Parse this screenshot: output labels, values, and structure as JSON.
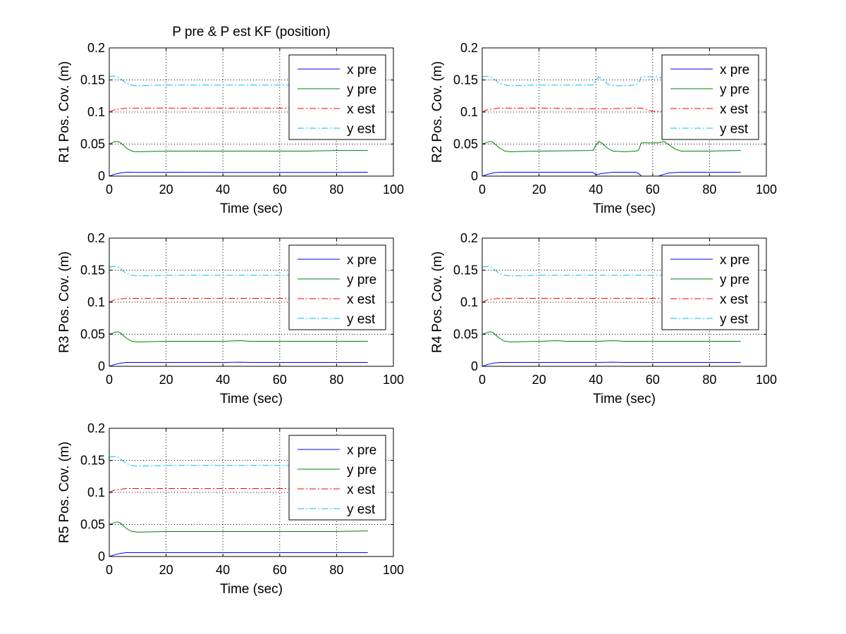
{
  "figure": {
    "background": "#ffffff",
    "colors": {
      "x_pre": "#0000ff",
      "y_pre": "#008000",
      "x_est": "#ff0000",
      "y_est": "#00bfff"
    }
  },
  "chart_data": [
    {
      "type": "line",
      "title": "P pre & P est KF (position)",
      "xlabel": "Time (sec)",
      "ylabel": "R1 Pos. Cov. (m)",
      "xlim": [
        0,
        100
      ],
      "ylim": [
        0,
        0.2
      ],
      "xticks": [
        "0",
        "20",
        "40",
        "60",
        "80",
        "100"
      ],
      "yticks": [
        "0",
        "0.05",
        "0.1",
        "0.15",
        "0.2"
      ],
      "grid": true,
      "legend_position": "top-right",
      "series": [
        {
          "name": "x pre",
          "style": "solid",
          "color": "#0000ff",
          "x": [
            0,
            1,
            2,
            3,
            4,
            5,
            6,
            8,
            10,
            20,
            40,
            60,
            80,
            91
          ],
          "y": [
            0,
            0.0015,
            0.003,
            0.004,
            0.005,
            0.0055,
            0.006,
            0.006,
            0.0058,
            0.006,
            0.0058,
            0.0058,
            0.0058,
            0.006
          ]
        },
        {
          "name": "y pre",
          "style": "solid",
          "color": "#008000",
          "x": [
            0,
            1,
            2,
            3,
            4,
            5,
            6,
            7,
            8,
            9,
            10,
            20,
            30,
            40,
            50,
            60,
            70,
            80,
            91
          ],
          "y": [
            0.05,
            0.052,
            0.054,
            0.054,
            0.052,
            0.048,
            0.044,
            0.041,
            0.039,
            0.038,
            0.038,
            0.039,
            0.039,
            0.039,
            0.039,
            0.039,
            0.039,
            0.04,
            0.04
          ]
        },
        {
          "name": "x est",
          "style": "dashdot",
          "color": "#ff0000",
          "x": [
            0,
            1,
            2,
            4,
            6,
            8,
            20,
            40,
            60,
            80,
            91
          ],
          "y": [
            0.1,
            0.102,
            0.104,
            0.105,
            0.106,
            0.106,
            0.106,
            0.106,
            0.106,
            0.106,
            0.106
          ]
        },
        {
          "name": "y est",
          "style": "dashdot",
          "color": "#00bfff",
          "x": [
            0,
            1,
            2,
            3,
            4,
            5,
            6,
            7,
            8,
            9,
            10,
            20,
            40,
            60,
            80,
            91
          ],
          "y": [
            0.155,
            0.156,
            0.156,
            0.155,
            0.152,
            0.148,
            0.145,
            0.143,
            0.142,
            0.141,
            0.141,
            0.142,
            0.142,
            0.142,
            0.142,
            0.142
          ]
        }
      ]
    },
    {
      "type": "line",
      "title": "",
      "xlabel": "Time (sec)",
      "ylabel": "R2 Pos. Cov. (m)",
      "xlim": [
        0,
        100
      ],
      "ylim": [
        0,
        0.2
      ],
      "xticks": [
        "0",
        "20",
        "40",
        "60",
        "80",
        "100"
      ],
      "yticks": [
        "0",
        "0.05",
        "0.1",
        "0.15",
        "0.2"
      ],
      "grid": true,
      "legend_position": "top-right",
      "series": [
        {
          "name": "x pre",
          "style": "solid",
          "color": "#0000ff",
          "x": [
            0,
            2,
            4,
            6,
            8,
            20,
            39,
            40,
            42,
            44,
            46,
            50,
            54,
            55,
            56,
            60,
            62,
            64,
            66,
            70,
            80,
            91
          ],
          "y": [
            0,
            0.003,
            0.005,
            0.006,
            0.006,
            0.006,
            0.006,
            0.002,
            0.004,
            0.005,
            0.006,
            0.006,
            0.006,
            0.0045,
            0,
            0,
            0,
            0.003,
            0.005,
            0.006,
            0.006,
            0.006
          ]
        },
        {
          "name": "y pre",
          "style": "solid",
          "color": "#008000",
          "x": [
            0,
            2,
            3,
            4,
            6,
            8,
            10,
            20,
            39,
            40,
            41,
            42,
            44,
            46,
            50,
            54,
            55,
            56,
            60,
            62,
            64,
            66,
            68,
            70,
            80,
            91
          ],
          "y": [
            0.05,
            0.053,
            0.054,
            0.052,
            0.044,
            0.039,
            0.038,
            0.039,
            0.04,
            0.048,
            0.054,
            0.052,
            0.044,
            0.039,
            0.038,
            0.039,
            0.04,
            0.052,
            0.052,
            0.052,
            0.054,
            0.048,
            0.042,
            0.039,
            0.039,
            0.04
          ]
        },
        {
          "name": "x est",
          "style": "dashdot",
          "color": "#ff0000",
          "x": [
            0,
            2,
            4,
            6,
            8,
            20,
            40,
            56,
            60,
            64,
            70,
            80,
            91
          ],
          "y": [
            0.1,
            0.104,
            0.105,
            0.106,
            0.106,
            0.106,
            0.105,
            0.106,
            0.101,
            0.101,
            0.106,
            0.106,
            0.106
          ]
        },
        {
          "name": "y est",
          "style": "dashdot",
          "color": "#00bfff",
          "x": [
            0,
            2,
            3,
            4,
            6,
            8,
            10,
            20,
            39,
            40,
            41,
            42,
            44,
            46,
            50,
            54,
            55,
            56,
            58,
            60,
            62,
            64,
            66,
            70,
            80,
            91
          ],
          "y": [
            0.155,
            0.156,
            0.155,
            0.152,
            0.145,
            0.142,
            0.141,
            0.142,
            0.142,
            0.15,
            0.155,
            0.152,
            0.144,
            0.141,
            0.141,
            0.142,
            0.145,
            0.155,
            0.155,
            0.155,
            0.155,
            0.152,
            0.146,
            0.142,
            0.142,
            0.142
          ]
        }
      ]
    },
    {
      "type": "line",
      "title": "",
      "xlabel": "Time (sec)",
      "ylabel": "R3 Pos. Cov. (m)",
      "xlim": [
        0,
        100
      ],
      "ylim": [
        0,
        0.2
      ],
      "xticks": [
        "0",
        "20",
        "40",
        "60",
        "80",
        "100"
      ],
      "yticks": [
        "0",
        "0.05",
        "0.1",
        "0.15",
        "0.2"
      ],
      "grid": true,
      "legend_position": "top-right",
      "series": [
        {
          "name": "x pre",
          "style": "solid",
          "color": "#0000ff",
          "x": [
            0,
            2,
            4,
            6,
            8,
            20,
            40,
            46,
            50,
            60,
            80,
            91
          ],
          "y": [
            0,
            0.003,
            0.005,
            0.006,
            0.006,
            0.006,
            0.006,
            0.0065,
            0.006,
            0.006,
            0.006,
            0.006
          ]
        },
        {
          "name": "y pre",
          "style": "solid",
          "color": "#008000",
          "x": [
            0,
            2,
            3,
            4,
            6,
            8,
            10,
            20,
            40,
            46,
            50,
            60,
            80,
            91
          ],
          "y": [
            0.05,
            0.053,
            0.054,
            0.052,
            0.044,
            0.039,
            0.038,
            0.039,
            0.039,
            0.04,
            0.039,
            0.039,
            0.039,
            0.039
          ]
        },
        {
          "name": "x est",
          "style": "dashdot",
          "color": "#ff0000",
          "x": [
            0,
            2,
            4,
            6,
            8,
            20,
            40,
            60,
            80,
            91
          ],
          "y": [
            0.1,
            0.104,
            0.105,
            0.106,
            0.106,
            0.106,
            0.106,
            0.106,
            0.106,
            0.106
          ]
        },
        {
          "name": "y est",
          "style": "dashdot",
          "color": "#00bfff",
          "x": [
            0,
            2,
            3,
            4,
            6,
            8,
            10,
            20,
            40,
            60,
            80,
            91
          ],
          "y": [
            0.155,
            0.156,
            0.155,
            0.152,
            0.145,
            0.142,
            0.141,
            0.142,
            0.142,
            0.142,
            0.142,
            0.142
          ]
        }
      ]
    },
    {
      "type": "line",
      "title": "",
      "xlabel": "Time (sec)",
      "ylabel": "R4 Pos. Cov. (m)",
      "xlim": [
        0,
        100
      ],
      "ylim": [
        0,
        0.2
      ],
      "xticks": [
        "0",
        "20",
        "40",
        "60",
        "80",
        "100"
      ],
      "yticks": [
        "0",
        "0.05",
        "0.1",
        "0.15",
        "0.2"
      ],
      "grid": true,
      "legend_position": "top-right",
      "series": [
        {
          "name": "x pre",
          "style": "solid",
          "color": "#0000ff",
          "x": [
            0,
            2,
            4,
            6,
            8,
            20,
            40,
            46,
            50,
            60,
            80,
            91
          ],
          "y": [
            0,
            0.003,
            0.005,
            0.006,
            0.006,
            0.006,
            0.006,
            0.0065,
            0.006,
            0.006,
            0.006,
            0.006
          ]
        },
        {
          "name": "y pre",
          "style": "solid",
          "color": "#008000",
          "x": [
            0,
            2,
            3,
            4,
            6,
            8,
            10,
            20,
            26,
            30,
            40,
            46,
            50,
            60,
            80,
            91
          ],
          "y": [
            0.05,
            0.053,
            0.054,
            0.052,
            0.044,
            0.039,
            0.038,
            0.039,
            0.04,
            0.039,
            0.039,
            0.04,
            0.039,
            0.039,
            0.039,
            0.039
          ]
        },
        {
          "name": "x est",
          "style": "dashdot",
          "color": "#ff0000",
          "x": [
            0,
            2,
            4,
            6,
            8,
            20,
            40,
            60,
            80,
            91
          ],
          "y": [
            0.1,
            0.104,
            0.105,
            0.106,
            0.106,
            0.106,
            0.106,
            0.106,
            0.106,
            0.106
          ]
        },
        {
          "name": "y est",
          "style": "dashdot",
          "color": "#00bfff",
          "x": [
            0,
            2,
            3,
            4,
            6,
            8,
            10,
            20,
            40,
            60,
            80,
            91
          ],
          "y": [
            0.155,
            0.156,
            0.155,
            0.152,
            0.145,
            0.142,
            0.141,
            0.142,
            0.142,
            0.142,
            0.142,
            0.142
          ]
        }
      ]
    },
    {
      "type": "line",
      "title": "",
      "xlabel": "Time (sec)",
      "ylabel": "R5 Pos. Cov. (m)",
      "xlim": [
        0,
        100
      ],
      "ylim": [
        0,
        0.2
      ],
      "xticks": [
        "0",
        "20",
        "40",
        "60",
        "80",
        "100"
      ],
      "yticks": [
        "0",
        "0.05",
        "0.1",
        "0.15",
        "0.2"
      ],
      "grid": true,
      "legend_position": "top-right",
      "series": [
        {
          "name": "x pre",
          "style": "solid",
          "color": "#0000ff",
          "x": [
            0,
            2,
            4,
            6,
            8,
            20,
            40,
            60,
            80,
            91
          ],
          "y": [
            0,
            0.003,
            0.005,
            0.006,
            0.006,
            0.006,
            0.006,
            0.006,
            0.006,
            0.006
          ]
        },
        {
          "name": "y pre",
          "style": "solid",
          "color": "#008000",
          "x": [
            0,
            2,
            3,
            4,
            6,
            8,
            10,
            20,
            40,
            60,
            80,
            91
          ],
          "y": [
            0.05,
            0.053,
            0.054,
            0.052,
            0.044,
            0.039,
            0.038,
            0.039,
            0.039,
            0.039,
            0.039,
            0.04
          ]
        },
        {
          "name": "x est",
          "style": "dashdot",
          "color": "#ff0000",
          "x": [
            0,
            2,
            4,
            6,
            8,
            20,
            40,
            60,
            80,
            91
          ],
          "y": [
            0.1,
            0.104,
            0.105,
            0.106,
            0.106,
            0.106,
            0.106,
            0.106,
            0.106,
            0.106
          ]
        },
        {
          "name": "y est",
          "style": "dashdot",
          "color": "#00bfff",
          "x": [
            0,
            2,
            3,
            4,
            6,
            8,
            10,
            20,
            40,
            60,
            80,
            91
          ],
          "y": [
            0.155,
            0.156,
            0.155,
            0.152,
            0.145,
            0.142,
            0.141,
            0.142,
            0.142,
            0.142,
            0.142,
            0.142
          ]
        }
      ]
    }
  ]
}
